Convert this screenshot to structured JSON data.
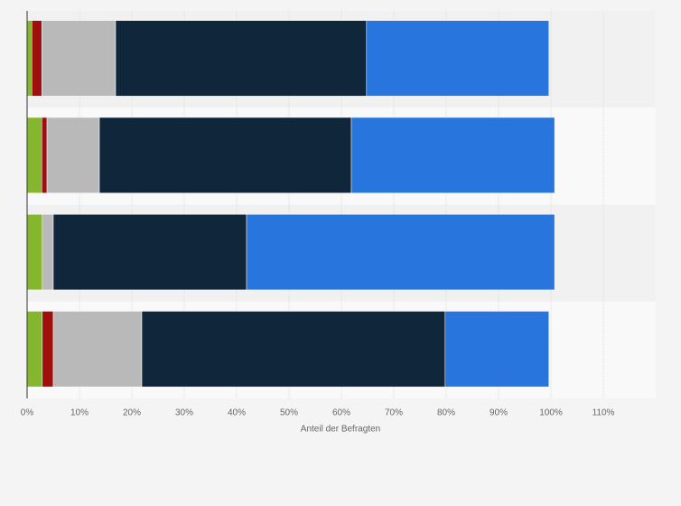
{
  "chart_data": {
    "type": "stacked-bar-horizontal",
    "categories": [
      null,
      null,
      null,
      null
    ],
    "series": [
      {
        "color": "#84b72e",
        "values": [
          0.9,
          2.8,
          2.9,
          2.9
        ]
      },
      {
        "color": "#a00e0e",
        "values": [
          1.9,
          1.0,
          0,
          2.1
        ]
      },
      {
        "color": "#b9b9b9",
        "values": [
          14.1,
          10.0,
          2.1,
          16.9
        ]
      },
      {
        "color": "#10263b",
        "values": [
          47.9,
          48.1,
          36.9,
          57.9
        ]
      },
      {
        "color": "#2876dd",
        "values": [
          34.8,
          38.8,
          58.8,
          19.8
        ]
      }
    ],
    "xlabel": "Anteil der Befragten",
    "xlim": [
      0,
      120
    ],
    "xticks": [
      {
        "value": 0,
        "label": "0%"
      },
      {
        "value": 10,
        "label": "10%"
      },
      {
        "value": 20,
        "label": "20%"
      },
      {
        "value": 30,
        "label": "30%"
      },
      {
        "value": 40,
        "label": "40%"
      },
      {
        "value": 50,
        "label": "50%"
      },
      {
        "value": 60,
        "label": "60%"
      },
      {
        "value": 70,
        "label": "70%"
      },
      {
        "value": 80,
        "label": "80%"
      },
      {
        "value": 90,
        "label": "90%"
      },
      {
        "value": 100,
        "label": "100%"
      },
      {
        "value": 110,
        "label": "110%"
      }
    ],
    "grid": true
  }
}
